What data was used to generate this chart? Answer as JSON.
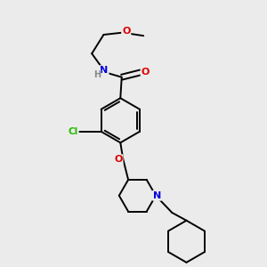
{
  "background_color": "#ebebeb",
  "atom_colors": {
    "C": "#000000",
    "N": "#0000dd",
    "O": "#dd0000",
    "Cl": "#22bb00",
    "H": "#888888"
  },
  "bond_color": "#000000",
  "bond_width": 1.4,
  "figsize": [
    3.0,
    3.0
  ],
  "dpi": 100
}
